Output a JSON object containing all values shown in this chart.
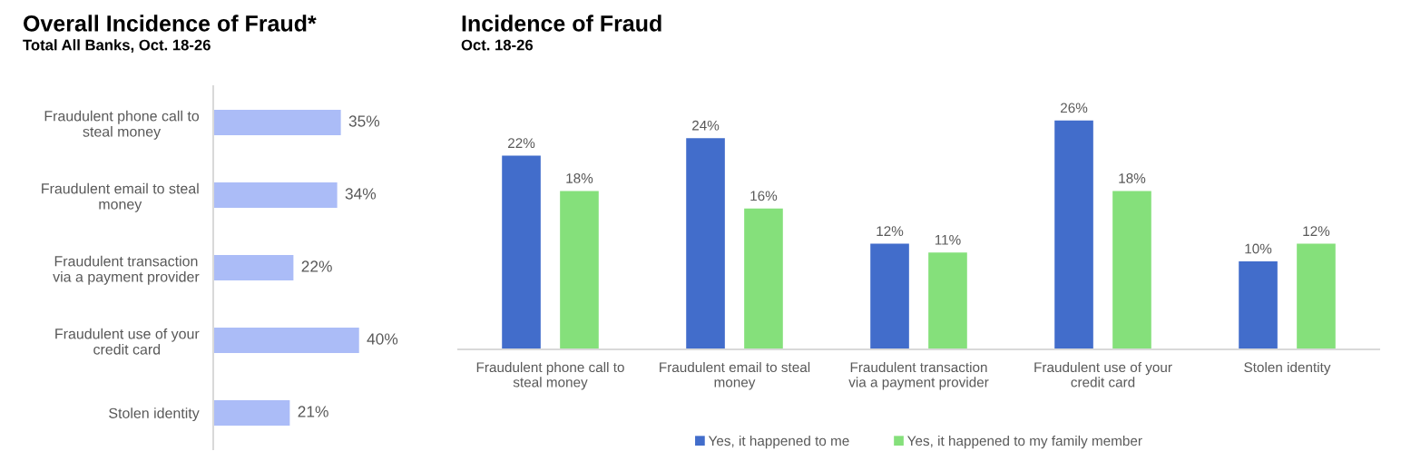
{
  "chart_data": [
    {
      "type": "bar",
      "orientation": "horizontal",
      "title": "Overall Incidence of Fraud*",
      "subtitle": "Total All Banks, Oct. 18-26",
      "categories": [
        "Fraudulent phone call to\nsteal money",
        "Fraudulent email to steal\nmoney",
        "Fraudulent transaction\nvia a payment provider",
        "Fraudulent use of your\ncredit card",
        "Stolen identity"
      ],
      "values": [
        35,
        34,
        22,
        40,
        21
      ],
      "color": "#abbcf7",
      "value_labels": [
        "35%",
        "34%",
        "22%",
        "40%",
        "21%"
      ],
      "tick_labels": "y"
    },
    {
      "type": "bar",
      "title": "Incidence of Fraud",
      "subtitle": "Oct. 18-26",
      "categories": [
        "Fraudulent phone call to\nsteal money",
        "Fraudulent email to steal\nmoney",
        "Fraudulent transaction\nvia a payment provider",
        "Fraudulent use of your\ncredit card",
        "Stolen identity"
      ],
      "series": [
        {
          "name": "Yes, it happened to me",
          "color": "#426dcb",
          "values": [
            22,
            24,
            12,
            26,
            10
          ],
          "value_labels": [
            "22%",
            "24%",
            "12%",
            "26%",
            "10%"
          ]
        },
        {
          "name": "Yes, it happened to my family member",
          "color": "#85e07b",
          "values": [
            18,
            16,
            11,
            18,
            12
          ],
          "value_labels": [
            "18%",
            "16%",
            "11%",
            "18%",
            "12%"
          ]
        }
      ],
      "legend": "bottom",
      "tick_labels": "x"
    }
  ]
}
